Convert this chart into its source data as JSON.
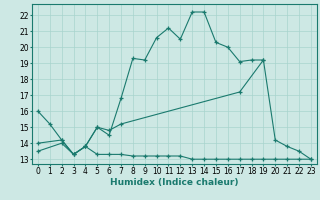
{
  "xlabel": "Humidex (Indice chaleur)",
  "bg_color": "#cde8e4",
  "grid_color": "#a8d4ce",
  "line_color": "#1a7a6e",
  "xlim": [
    -0.5,
    23.5
  ],
  "ylim": [
    12.7,
    22.7
  ],
  "xticks": [
    0,
    1,
    2,
    3,
    4,
    5,
    6,
    7,
    8,
    9,
    10,
    11,
    12,
    13,
    14,
    15,
    16,
    17,
    18,
    19,
    20,
    21,
    22,
    23
  ],
  "yticks": [
    13,
    14,
    15,
    16,
    17,
    18,
    19,
    20,
    21,
    22
  ],
  "line1_x": [
    0,
    1,
    2,
    3,
    4,
    5,
    6,
    7,
    8,
    9,
    10,
    11,
    12,
    13,
    14,
    15,
    16,
    17,
    18,
    19
  ],
  "line1_y": [
    16.0,
    15.2,
    14.2,
    13.3,
    13.8,
    15.0,
    14.5,
    16.8,
    19.3,
    19.2,
    20.6,
    21.2,
    20.5,
    22.2,
    22.2,
    20.3,
    20.0,
    19.1,
    19.2,
    19.2
  ],
  "line2_x": [
    0,
    2,
    3,
    4,
    5,
    6,
    7,
    17,
    19,
    20,
    21,
    22,
    23
  ],
  "line2_y": [
    14.0,
    14.2,
    13.3,
    13.8,
    15.0,
    14.8,
    15.2,
    17.2,
    19.2,
    14.2,
    13.8,
    13.5,
    13.0
  ],
  "line3_x": [
    0,
    2,
    3,
    4,
    5,
    6,
    7,
    8,
    9,
    10,
    11,
    12,
    13,
    14,
    15,
    16,
    17,
    18,
    19,
    20,
    21,
    22,
    23
  ],
  "line3_y": [
    13.5,
    14.0,
    13.3,
    13.8,
    13.3,
    13.3,
    13.3,
    13.2,
    13.2,
    13.2,
    13.2,
    13.2,
    13.0,
    13.0,
    13.0,
    13.0,
    13.0,
    13.0,
    13.0,
    13.0,
    13.0,
    13.0,
    13.0
  ]
}
